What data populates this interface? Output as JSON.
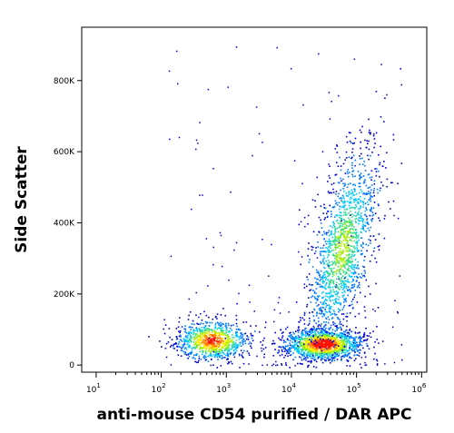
{
  "chart_data": {
    "type": "scatter",
    "style": "density-colored flow cytometry dot plot",
    "title": "",
    "xlabel": "anti-mouse CD54 purified / DAR APC",
    "ylabel": "Side Scatter",
    "x_scale": "log",
    "xlim": [
      6,
      1200000
    ],
    "ylim": [
      -20000,
      950000
    ],
    "grid": false,
    "legend": "none",
    "x_ticks": [
      {
        "base": "10",
        "exp": "1",
        "value": 10
      },
      {
        "base": "10",
        "exp": "2",
        "value": 100
      },
      {
        "base": "10",
        "exp": "3",
        "value": 1000
      },
      {
        "base": "10",
        "exp": "4",
        "value": 10000
      },
      {
        "base": "10",
        "exp": "5",
        "value": 100000
      },
      {
        "base": "10",
        "exp": "6",
        "value": 1000000
      }
    ],
    "y_ticks": [
      {
        "label": "0",
        "value": 0
      },
      {
        "label": "200K",
        "value": 200000
      },
      {
        "label": "400K",
        "value": 400000
      },
      {
        "label": "600K",
        "value": 600000
      },
      {
        "label": "800K",
        "value": 800000
      }
    ],
    "density_colors": [
      "#0000cc",
      "#0077ff",
      "#00c8ff",
      "#33dd88",
      "#aaee00",
      "#ffee00",
      "#ff8800",
      "#ff1100"
    ],
    "populations": [
      {
        "description": "negative population",
        "center_x": 600,
        "center_y": 70000,
        "spread_log_x": 0.28,
        "spread_y": 28000,
        "count": 900,
        "peak_level": 7
      },
      {
        "description": "positive population",
        "center_x": 30000,
        "center_y": 60000,
        "spread_log_x": 0.3,
        "spread_y": 22000,
        "count": 1400,
        "peak_level": 8
      },
      {
        "description": "positive high side scatter",
        "center_x": 60000,
        "center_y": 330000,
        "spread_log_x": 0.22,
        "spread_y": 140000,
        "count": 1500,
        "peak_level": 4
      }
    ]
  }
}
